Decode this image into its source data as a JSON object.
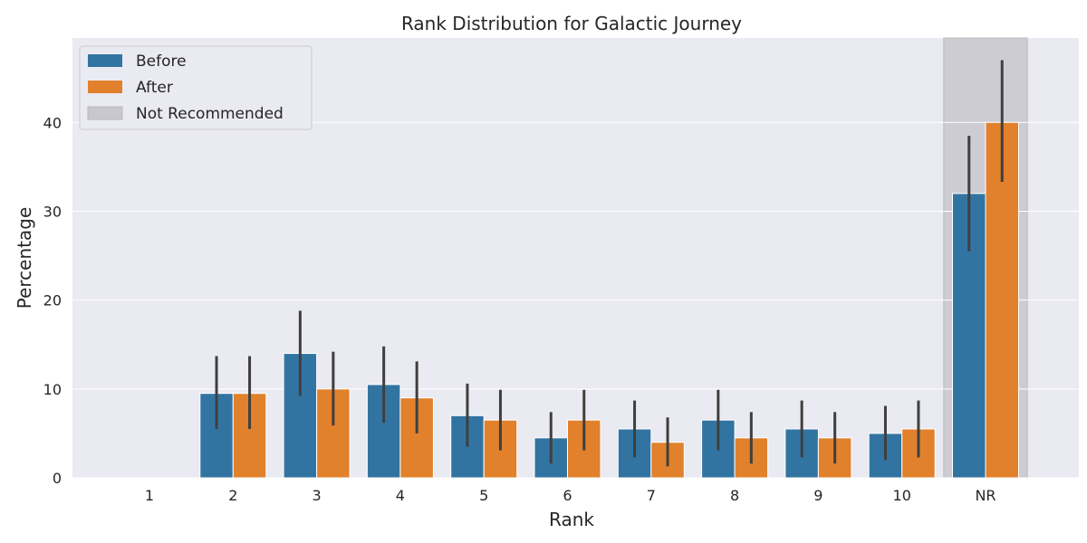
{
  "chart_data": {
    "type": "bar",
    "title": "Rank Distribution for Galactic Journey",
    "xlabel": "Rank",
    "ylabel": "Percentage",
    "categories": [
      "1",
      "2",
      "3",
      "4",
      "5",
      "6",
      "7",
      "8",
      "9",
      "10",
      "NR"
    ],
    "ylim": [
      0,
      49.5
    ],
    "yticks": [
      0,
      10,
      20,
      30,
      40
    ],
    "grid": true,
    "legend_position": "top-left",
    "highlight": {
      "category": "NR",
      "label": "Not Recommended",
      "color": "#c8c7cd"
    },
    "series": [
      {
        "name": "Before",
        "color": "#3274a1",
        "values": [
          0,
          9.5,
          14,
          10.5,
          7,
          4.5,
          5.5,
          6.5,
          5.5,
          5,
          32
        ],
        "ci_low": [
          0,
          5.5,
          9.2,
          6.2,
          3.5,
          1.6,
          2.3,
          3.1,
          2.3,
          2.0,
          25.5
        ],
        "ci_high": [
          0,
          13.7,
          18.8,
          14.8,
          10.6,
          7.4,
          8.7,
          9.9,
          8.7,
          8.1,
          38.5
        ]
      },
      {
        "name": "After",
        "color": "#e1812c",
        "values": [
          0,
          9.5,
          10,
          9,
          6.5,
          6.5,
          4,
          4.5,
          4.5,
          5.5,
          40
        ],
        "ci_low": [
          0,
          5.5,
          5.9,
          5.0,
          3.1,
          3.1,
          1.3,
          1.6,
          1.6,
          2.3,
          33.3
        ],
        "ci_high": [
          0,
          13.7,
          14.2,
          13.1,
          9.9,
          9.9,
          6.8,
          7.4,
          7.4,
          8.7,
          47.0
        ]
      }
    ]
  }
}
